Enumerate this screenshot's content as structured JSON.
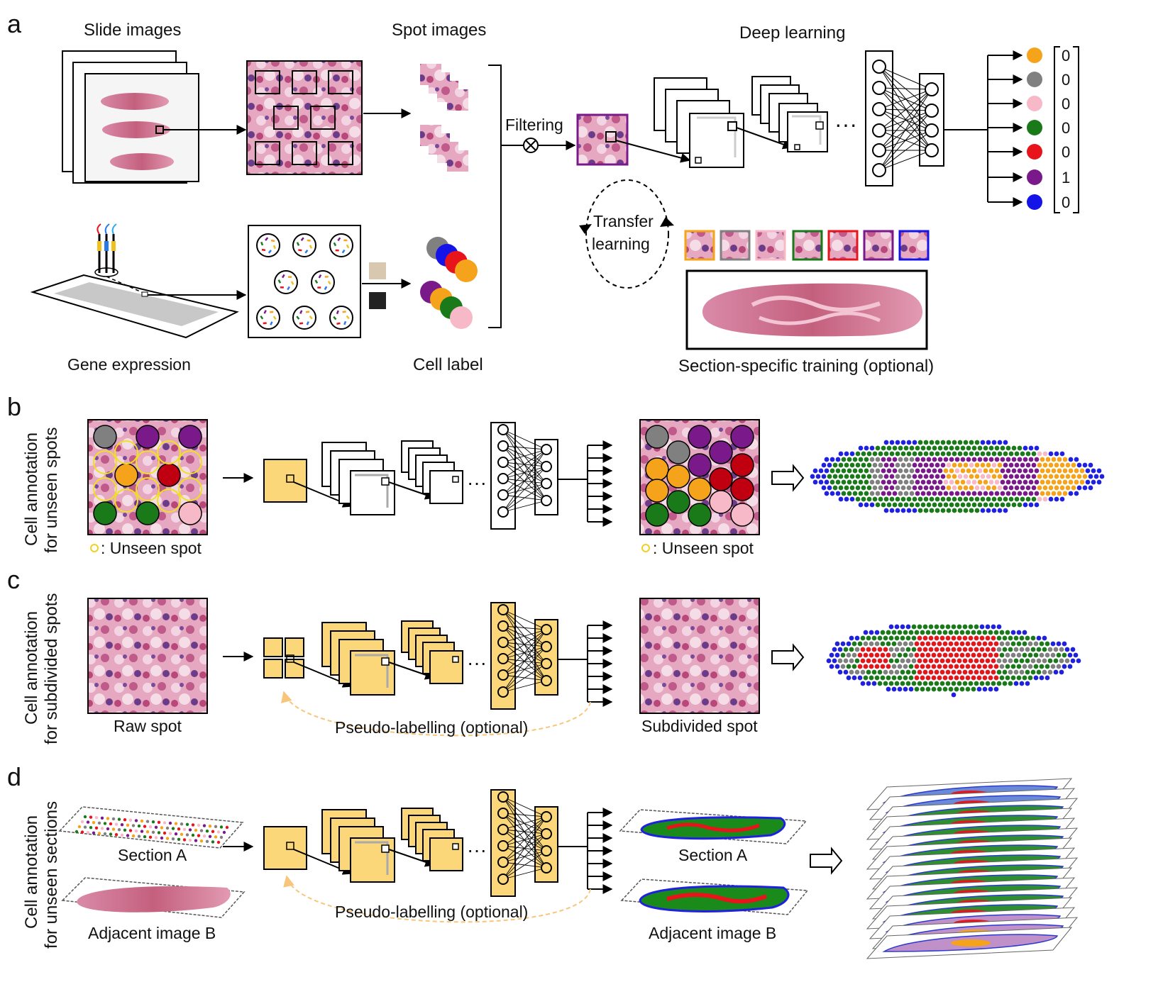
{
  "panel_a": {
    "letter": "a",
    "slide_images": "Slide images",
    "spot_images": "Spot images",
    "deep_learning": "Deep learning",
    "filtering": "Filtering",
    "transfer": "Transfer",
    "learning": "learning",
    "gene_expression": "Gene expression",
    "cell_label": "Cell label",
    "section_training": "Section-specific training (optional)",
    "onehot": [
      "0",
      "0",
      "0",
      "0",
      "0",
      "1",
      "0"
    ],
    "class_colors": [
      "#f5a31a",
      "#808080",
      "#f7b8c8",
      "#1a7a1a",
      "#e8141b",
      "#7a1a8a",
      "#1414e8"
    ]
  },
  "panel_b": {
    "letter": "b",
    "side1": "Cell annotation",
    "side2": "for unseen spots",
    "legend_left": ": Unseen spot",
    "legend_right": ": Unseen spot"
  },
  "panel_c": {
    "letter": "c",
    "side1": "Cell annotation",
    "side2": "for subdivided spots",
    "raw_spot": "Raw spot",
    "pseudo": "Pseudo-labelling (optional)",
    "subdivided": "Subdivided spot"
  },
  "panel_d": {
    "letter": "d",
    "side1": "Cell annotation",
    "side2": "for unseen sections",
    "section_a_left": "Section A",
    "adjacent_left": "Adjacent image B",
    "pseudo": "Pseudo-labelling (optional)",
    "section_a_right": "Section A",
    "adjacent_right": "Adjacent image B"
  }
}
